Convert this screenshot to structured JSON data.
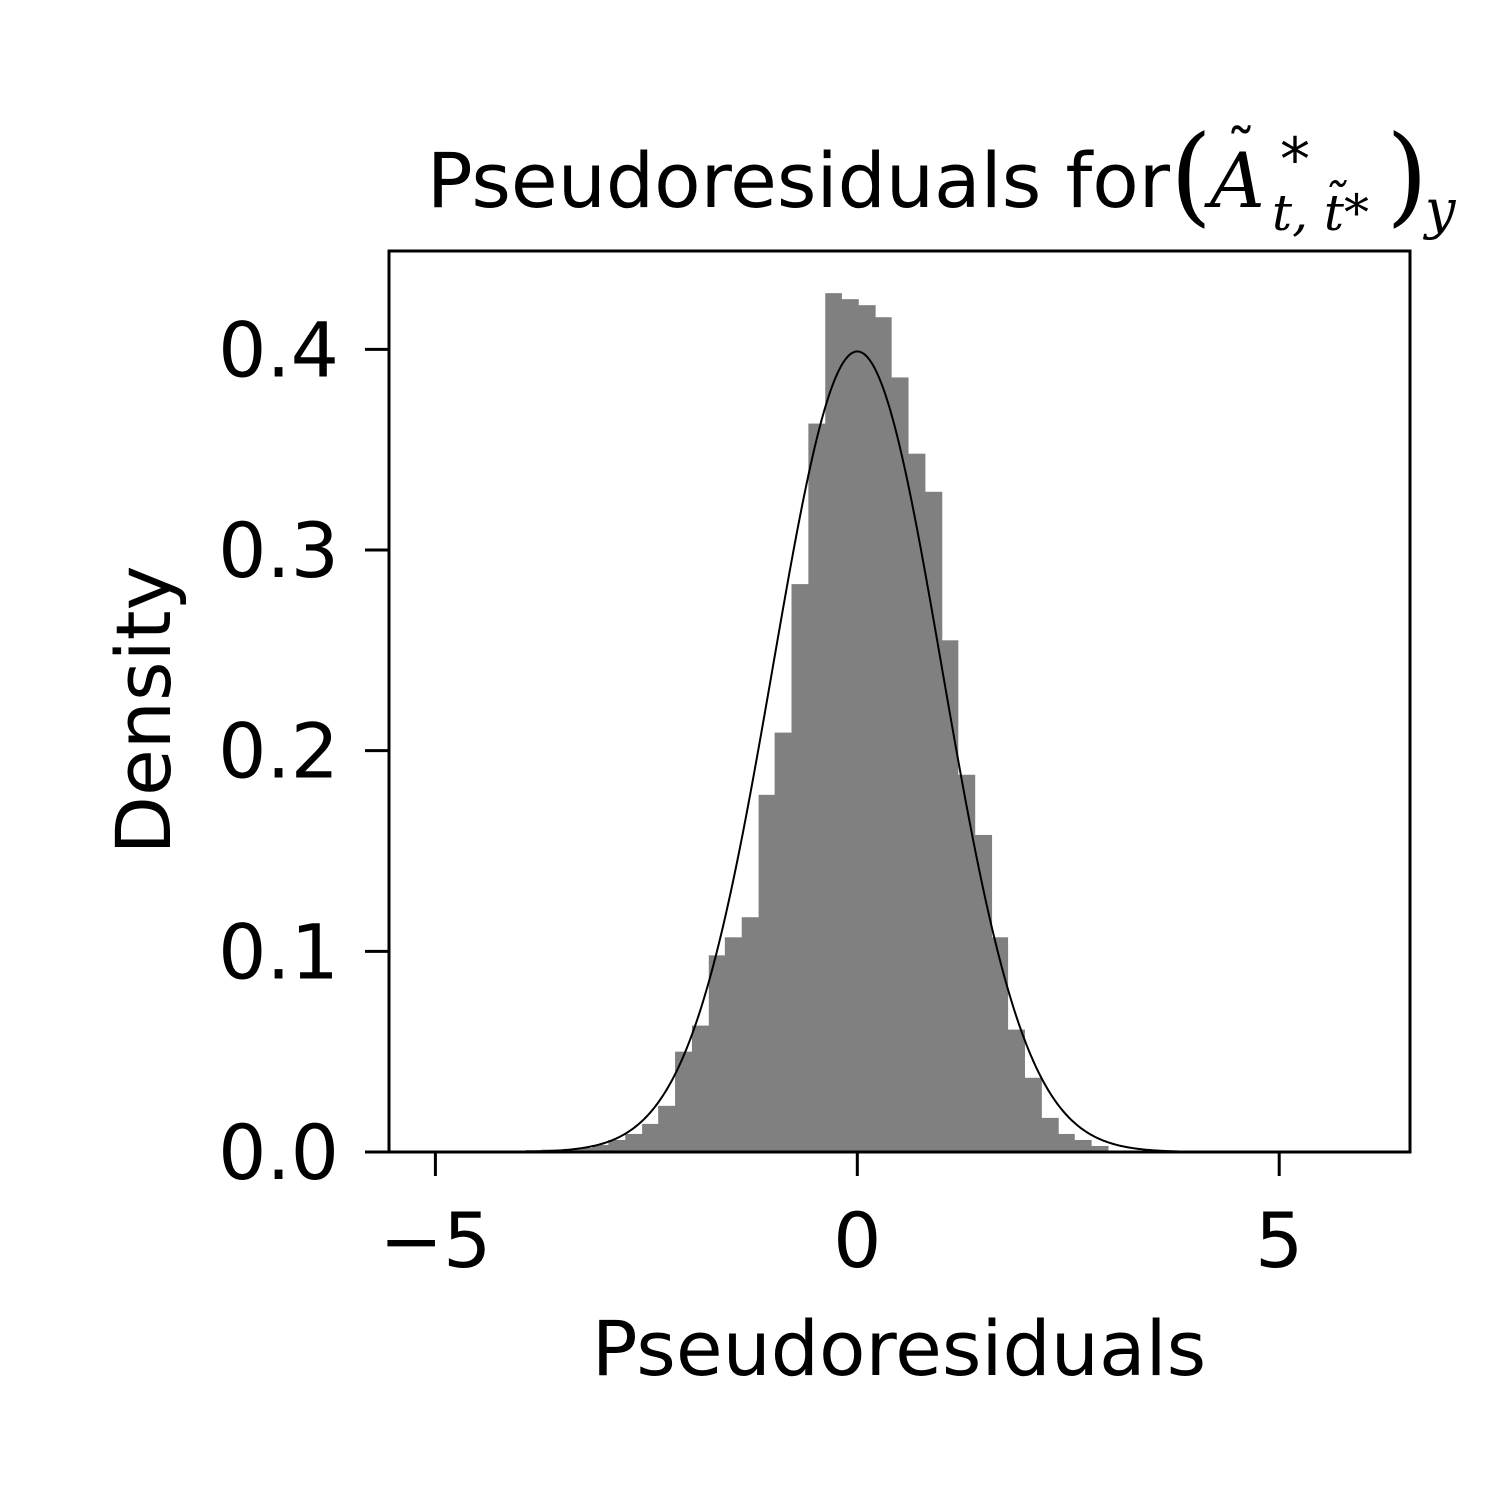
{
  "chart_data": {
    "type": "bar",
    "title_text": "Pseudoresiduals for ",
    "title_math": {
      "base": "A",
      "accent": "˜",
      "superscript": "*",
      "subscript": "t, t̃*",
      "outer_subscript": "y"
    },
    "xlabel": "Pseudoresiduals",
    "ylabel": "Density",
    "xlim": [
      -5.55,
      6.55
    ],
    "ylim": [
      0,
      0.449
    ],
    "xticks": [
      {
        "value": -5,
        "label": "−5"
      },
      {
        "value": 0,
        "label": "0"
      },
      {
        "value": 5,
        "label": "5"
      }
    ],
    "yticks": [
      {
        "value": 0.0,
        "label": "0.0"
      },
      {
        "value": 0.1,
        "label": "0.1"
      },
      {
        "value": 0.2,
        "label": "0.2"
      },
      {
        "value": 0.3,
        "label": "0.3"
      },
      {
        "value": 0.4,
        "label": "0.4"
      }
    ],
    "bar_color": "#808080",
    "curve_color": "#000000",
    "bin_edges": [
      -4.92,
      -4.72,
      -4.52,
      -4.33,
      -4.13,
      -3.93,
      -3.74,
      -3.54,
      -3.34,
      -3.14,
      -2.95,
      -2.75,
      -2.55,
      -2.36,
      -2.16,
      -1.96,
      -1.76,
      -1.57,
      -1.37,
      -1.17,
      -0.98,
      -0.78,
      -0.58,
      -0.38,
      -0.19,
      0.01,
      0.21,
      0.4,
      0.6,
      0.8,
      1.0,
      1.19,
      1.39,
      1.59,
      1.78,
      1.98,
      2.18,
      2.38,
      2.57,
      2.77,
      2.97
    ],
    "values": [
      0.0002,
      0.0002,
      0.0002,
      0.0003,
      0.0005,
      0.001,
      0.0012,
      0.001,
      0.002,
      0.0035,
      0.006,
      0.009,
      0.014,
      0.023,
      0.05,
      0.063,
      0.098,
      0.107,
      0.117,
      0.178,
      0.209,
      0.283,
      0.363,
      0.428,
      0.425,
      0.422,
      0.416,
      0.386,
      0.348,
      0.329,
      0.255,
      0.188,
      0.158,
      0.107,
      0.061,
      0.037,
      0.017,
      0.009,
      0.006,
      0.003
    ],
    "curve": {
      "type": "normal-pdf",
      "mean": 0,
      "sd": 1
    }
  }
}
